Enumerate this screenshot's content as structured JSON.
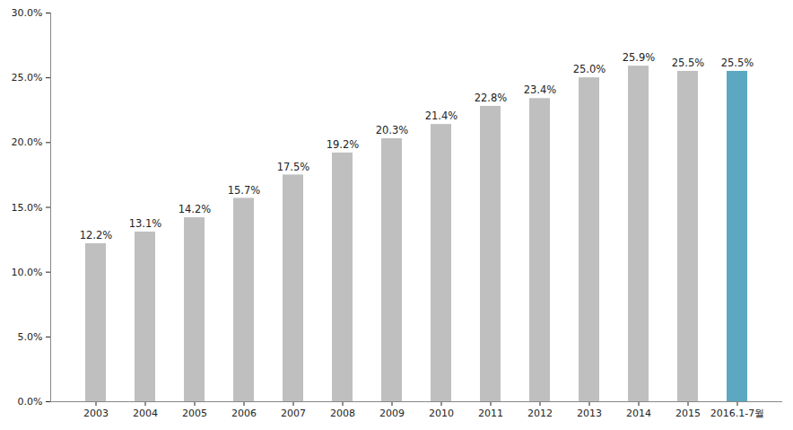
{
  "chart_data": {
    "type": "bar",
    "categories": [
      "2003",
      "2004",
      "2005",
      "2006",
      "2007",
      "2008",
      "2009",
      "2010",
      "2011",
      "2012",
      "2013",
      "2014",
      "2015",
      "2016.1-7월"
    ],
    "values": [
      12.2,
      13.1,
      14.2,
      15.7,
      17.5,
      19.2,
      20.3,
      21.4,
      22.8,
      23.4,
      25.0,
      25.9,
      25.5,
      25.5
    ],
    "value_labels": [
      "12.2%",
      "13.1%",
      "14.2%",
      "15.7%",
      "17.5%",
      "19.2%",
      "20.3%",
      "21.4%",
      "22.8%",
      "23.4%",
      "25.0%",
      "25.9%",
      "25.5%",
      "25.5%"
    ],
    "colors": [
      "#bfbfbf",
      "#bfbfbf",
      "#bfbfbf",
      "#bfbfbf",
      "#bfbfbf",
      "#bfbfbf",
      "#bfbfbf",
      "#bfbfbf",
      "#bfbfbf",
      "#bfbfbf",
      "#bfbfbf",
      "#bfbfbf",
      "#bfbfbf",
      "#5ba8c0"
    ],
    "ylim": [
      0,
      30
    ],
    "yticks": [
      {
        "value": 0,
        "label": "0.0%"
      },
      {
        "value": 5,
        "label": "5.0%"
      },
      {
        "value": 10,
        "label": "10.0%"
      },
      {
        "value": 15,
        "label": "15.0%"
      },
      {
        "value": 20,
        "label": "20.0%"
      },
      {
        "value": 25,
        "label": "25.0%"
      },
      {
        "value": 30,
        "label": "30.0%"
      }
    ],
    "grid": false,
    "data_labels": true
  }
}
